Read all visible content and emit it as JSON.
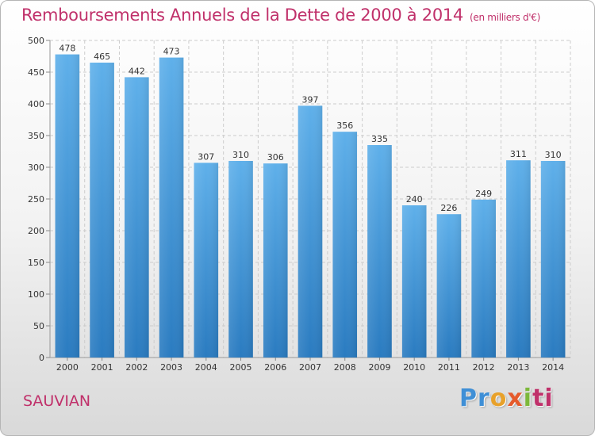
{
  "header": {
    "title": "Remboursements Annuels de la Dette de 2000 à 2014",
    "unit": "(en milliers d'€)"
  },
  "footer": {
    "commune": "SAUVIAN",
    "logo": [
      "Pr",
      "o",
      "x",
      "i",
      "ti"
    ]
  },
  "colors": {
    "accent": "#c0306a",
    "bar_top": "#5fb0ea",
    "bar_bottom": "#2a7bc0",
    "grid": "#cccccc",
    "text": "#333333"
  },
  "chart_data": {
    "type": "bar",
    "title": "Remboursements Annuels de la Dette de 2000 à 2014",
    "xlabel": "",
    "ylabel": "",
    "ylim": [
      0,
      500
    ],
    "yticks": [
      0,
      50,
      100,
      150,
      200,
      250,
      300,
      350,
      400,
      450,
      500
    ],
    "grid": true,
    "legend": "none",
    "categories": [
      "2000",
      "2001",
      "2002",
      "2003",
      "2004",
      "2005",
      "2006",
      "2007",
      "2008",
      "2009",
      "2010",
      "2011",
      "2012",
      "2013",
      "2014"
    ],
    "values": [
      478,
      465,
      442,
      473,
      307,
      310,
      306,
      397,
      356,
      335,
      240,
      226,
      249,
      311,
      310
    ]
  }
}
